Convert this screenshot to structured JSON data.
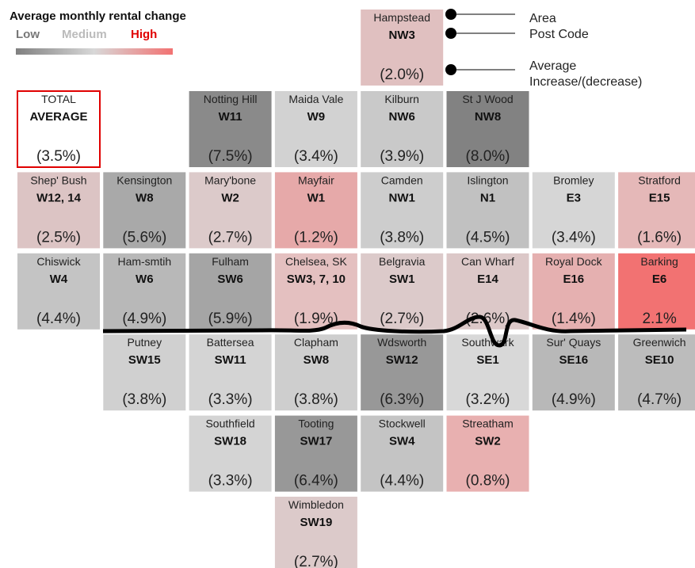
{
  "legend": {
    "title": "Average monthly rental change",
    "low": "Low",
    "medium": "Medium",
    "high": "High"
  },
  "key": {
    "area": "Area",
    "postcode": "Post Code",
    "average": [
      "Average",
      "Increase/(decrease)"
    ]
  },
  "tiles": [
    {
      "area": "Hampstead",
      "postcode": "NW3",
      "change": "(2.0%)",
      "color": "#e0c0c0"
    },
    {
      "area": "TOTAL",
      "postcode": "AVERAGE",
      "change": "(3.5%)",
      "color": "#ffffff",
      "border": "#e00000"
    },
    {
      "area": "Notting Hill",
      "postcode": "W11",
      "change": "(7.5%)",
      "color": "#8a8a8a"
    },
    {
      "area": "Maida Vale",
      "postcode": "W9",
      "change": "(3.4%)",
      "color": "#d2d2d2"
    },
    {
      "area": "Kilburn",
      "postcode": "NW6",
      "change": "(3.9%)",
      "color": "#c9c9c9"
    },
    {
      "area": "St J Wood",
      "postcode": "NW8",
      "change": "(8.0%)",
      "color": "#828282"
    },
    {
      "area": "Shep' Bush",
      "postcode": "W12, 14",
      "change": "(2.5%)",
      "color": "#dcc4c4"
    },
    {
      "area": "Kensington",
      "postcode": "W8",
      "change": "(5.6%)",
      "color": "#a9a9a9"
    },
    {
      "area": "Mary'bone",
      "postcode": "W2",
      "change": "(2.7%)",
      "color": "#dccaca"
    },
    {
      "area": "Mayfair",
      "postcode": "W1",
      "change": "(1.2%)",
      "color": "#e6a9a9"
    },
    {
      "area": "Camden",
      "postcode": "NW1",
      "change": "(3.8%)",
      "color": "#cdcdcd"
    },
    {
      "area": "Islington",
      "postcode": "N1",
      "change": "(4.5%)",
      "color": "#c1c1c1"
    },
    {
      "area": "Bromley",
      "postcode": "E3",
      "change": "(3.4%)",
      "color": "#d6d6d6"
    },
    {
      "area": "Stratford",
      "postcode": "E15",
      "change": "(1.6%)",
      "color": "#e5b8b8"
    },
    {
      "area": "Chiswick",
      "postcode": "W4",
      "change": "(4.4%)",
      "color": "#c4c4c4"
    },
    {
      "area": "Ham-smtih",
      "postcode": "W6",
      "change": "(4.9%)",
      "color": "#b8b8b8"
    },
    {
      "area": "Fulham",
      "postcode": "SW6",
      "change": "(5.9%)",
      "color": "#a5a5a5"
    },
    {
      "area": "Chelsea, SK",
      "postcode": "SW3, 7, 10",
      "change": "(1.9%)",
      "color": "#e4c0c0"
    },
    {
      "area": "Belgravia",
      "postcode": "SW1",
      "change": "(2.7%)",
      "color": "#dccaca"
    },
    {
      "area": "Can Wharf",
      "postcode": "E14",
      "change": "(2.6%)",
      "color": "#dcc8c8"
    },
    {
      "area": "Royal Dock",
      "postcode": "E16",
      "change": "(1.4%)",
      "color": "#e5b0b0"
    },
    {
      "area": "Barking",
      "postcode": "E6",
      "change": "2.1%",
      "color": "#f27272"
    },
    {
      "area": "Putney",
      "postcode": "SW15",
      "change": "(3.8%)",
      "color": "#d0d0d0"
    },
    {
      "area": "Battersea",
      "postcode": "SW11",
      "change": "(3.3%)",
      "color": "#d4d4d4"
    },
    {
      "area": "Clapham",
      "postcode": "SW8",
      "change": "(3.8%)",
      "color": "#cecece"
    },
    {
      "area": "Wdsworth",
      "postcode": "SW12",
      "change": "(6.3%)",
      "color": "#989898"
    },
    {
      "area": "Southwark",
      "postcode": "SE1",
      "change": "(3.2%)",
      "color": "#d8d8d8"
    },
    {
      "area": "Sur' Quays",
      "postcode": "SE16",
      "change": "(4.9%)",
      "color": "#b8b8b8"
    },
    {
      "area": "Greenwich",
      "postcode": "SE10",
      "change": "(4.7%)",
      "color": "#bcbcbc"
    },
    {
      "area": "Southfield",
      "postcode": "SW18",
      "change": "(3.3%)",
      "color": "#d4d4d4"
    },
    {
      "area": "Tooting",
      "postcode": "SW17",
      "change": "(6.4%)",
      "color": "#989898"
    },
    {
      "area": "Stockwell",
      "postcode": "SW4",
      "change": "(4.4%)",
      "color": "#c4c4c4"
    },
    {
      "area": "Streatham",
      "postcode": "SW2",
      "change": "(0.8%)",
      "color": "#e8b0b0"
    },
    {
      "area": "Wimbledon",
      "postcode": "SW19",
      "change": "(2.7%)",
      "color": "#dccaca"
    }
  ]
}
